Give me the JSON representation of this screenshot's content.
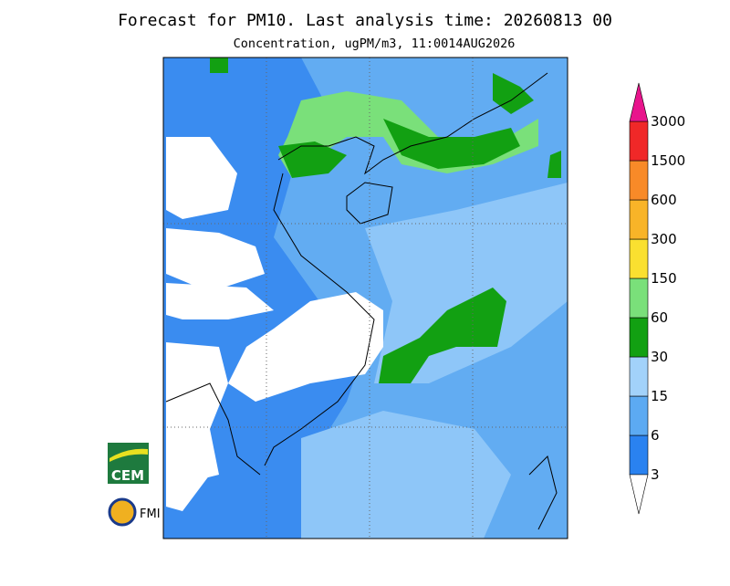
{
  "header": {
    "title": "Forecast for PM10. Last analysis time: 20260813 00",
    "subtitle": "Concentration, ugPM/m3, 11:0014AUG2026"
  },
  "colorbar": {
    "levels": [
      "3",
      "6",
      "15",
      "30",
      "60",
      "150",
      "300",
      "600",
      "1500",
      "3000"
    ],
    "colors": [
      "#2a82f0",
      "#5caaf2",
      "#a2d2fa",
      "#12a012",
      "#7ae07a",
      "#fae030",
      "#f8b428",
      "#f88a28",
      "#f02828"
    ],
    "under_color": "#ffffff",
    "over_color": "#e8148c"
  },
  "logos": {
    "cem": "CEM",
    "fmi": "FMI"
  }
}
